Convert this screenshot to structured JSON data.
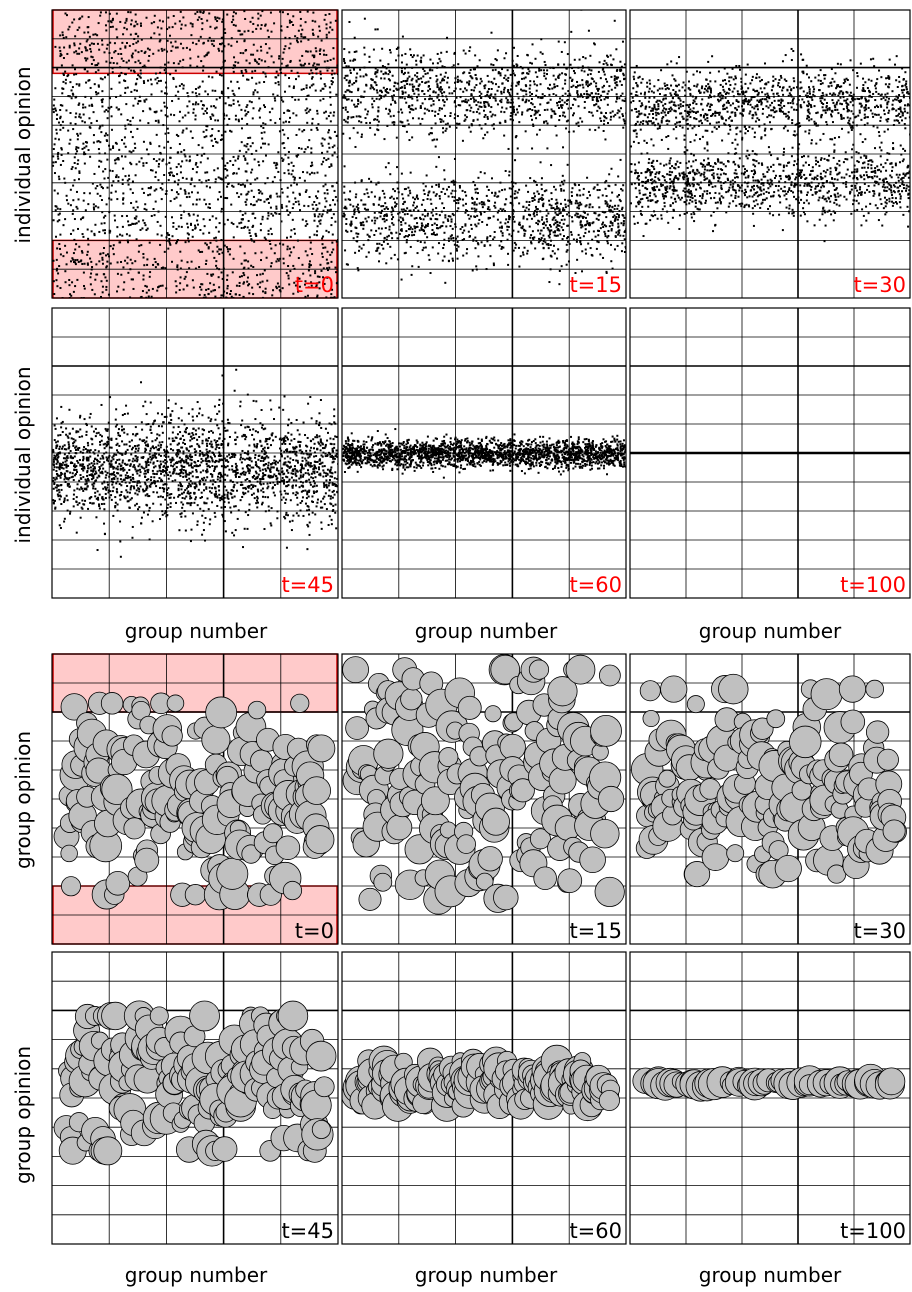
{
  "figure": {
    "ylabel_individual": "individual opinion",
    "ylabel_group": "group opinion",
    "xlabel": "group number",
    "time_label_color_individual": "#ff0000",
    "time_label_color_group": "#000000",
    "highlight_color": "#ff6666",
    "dot_color": "#000000",
    "bubble_fill": "#c0c0c0",
    "grid_color": "#000000"
  },
  "chart_data": [
    {
      "type": "scatter",
      "panel": "individual",
      "time_label": "t=0",
      "spread": 1.0,
      "center": 0.5,
      "highlight_bands": [
        [
          0.78,
          1.0
        ],
        [
          0.0,
          0.2
        ]
      ]
    },
    {
      "type": "scatter",
      "panel": "individual",
      "time_label": "t=15",
      "spread": 0.62,
      "center": 0.6,
      "clusters": [
        0.72,
        0.28
      ]
    },
    {
      "type": "scatter",
      "panel": "individual",
      "time_label": "t=30",
      "spread": 0.5,
      "center": 0.55,
      "clusters": [
        0.68,
        0.4
      ]
    },
    {
      "type": "scatter",
      "panel": "individual",
      "time_label": "t=45",
      "spread": 0.3,
      "center": 0.45
    },
    {
      "type": "scatter",
      "panel": "individual",
      "time_label": "t=60",
      "spread": 0.08,
      "center": 0.5
    },
    {
      "type": "scatter",
      "panel": "individual",
      "time_label": "t=100",
      "spread": 0.0,
      "center": 0.5
    },
    {
      "type": "scatter",
      "panel": "group",
      "time_label": "t=0",
      "spread": 0.6,
      "center": 0.5,
      "highlight_bands": [
        [
          0.8,
          1.0
        ],
        [
          0.0,
          0.2
        ]
      ]
    },
    {
      "type": "scatter",
      "panel": "group",
      "time_label": "t=15",
      "spread": 0.72,
      "center": 0.55
    },
    {
      "type": "scatter",
      "panel": "group",
      "time_label": "t=30",
      "spread": 0.58,
      "center": 0.56
    },
    {
      "type": "scatter",
      "panel": "group",
      "time_label": "t=45",
      "spread": 0.42,
      "center": 0.55
    },
    {
      "type": "scatter",
      "panel": "group",
      "time_label": "t=60",
      "spread": 0.14,
      "center": 0.55
    },
    {
      "type": "scatter",
      "panel": "group",
      "time_label": "t=100",
      "spread": 0.02,
      "center": 0.55
    }
  ]
}
